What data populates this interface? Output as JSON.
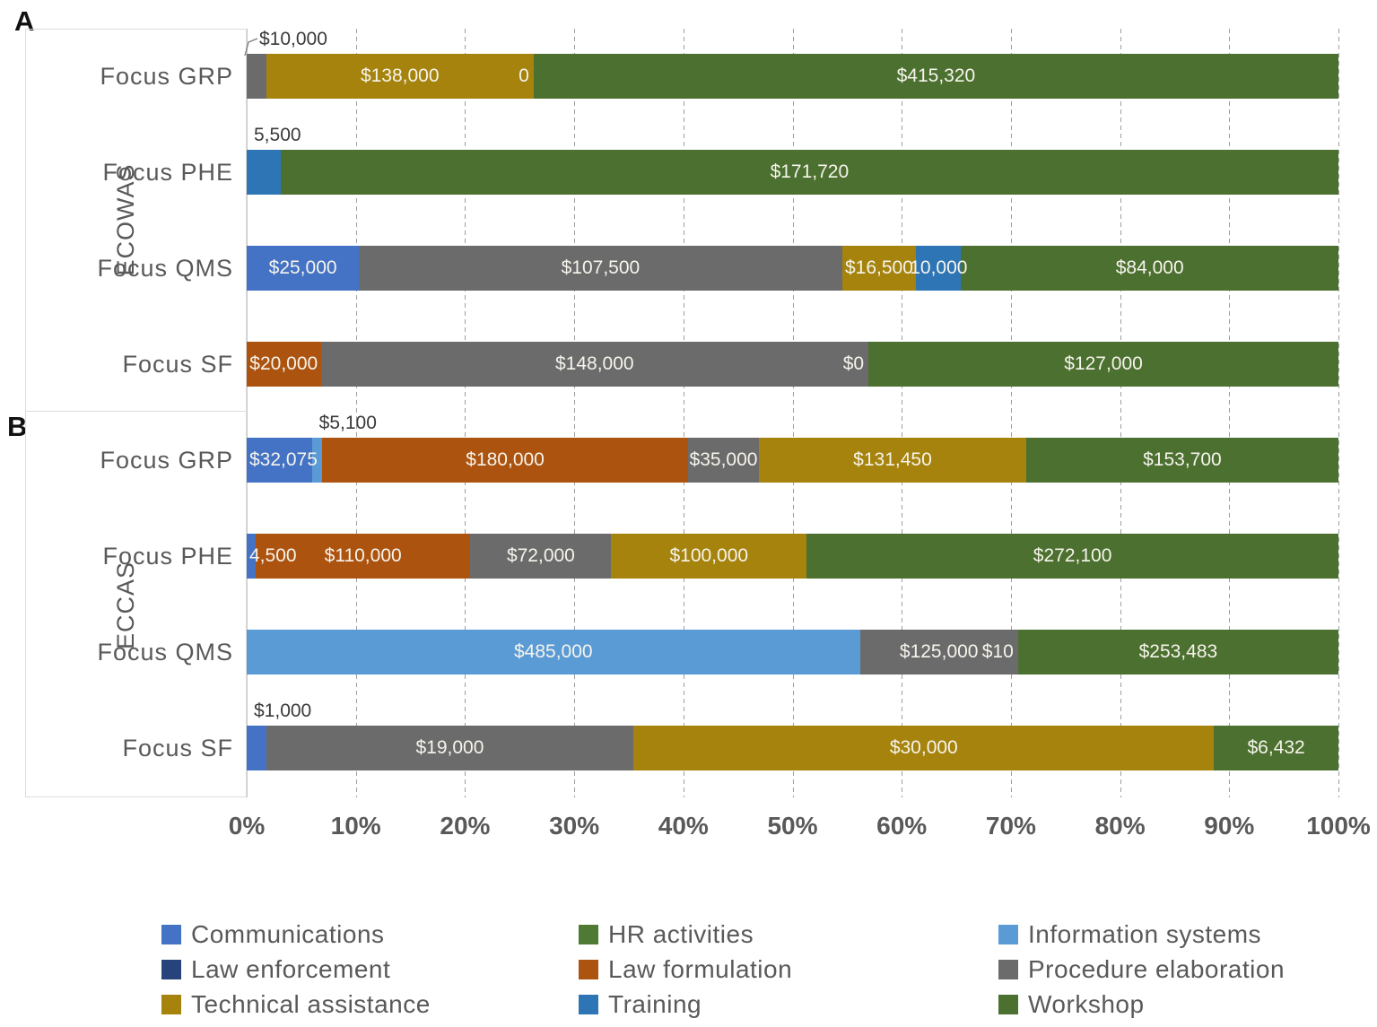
{
  "chart_data": {
    "type": "bar",
    "orientation": "horizontal",
    "stacking": "100%",
    "x_ticks": [
      "0%",
      "10%",
      "20%",
      "30%",
      "40%",
      "50%",
      "60%",
      "70%",
      "80%",
      "90%",
      "100%"
    ],
    "xlim": [
      0,
      100
    ],
    "grid": "dashed-vertical",
    "legend_position": "bottom",
    "series_colors": {
      "Communications": "#4472C4",
      "HR activities": "#4E7A33",
      "Information systems": "#5B9BD5",
      "Law enforcement": "#26437C",
      "Law formulation": "#AC5310",
      "Procedure elaboration": "#6B6B6B",
      "Technical assistance": "#A5830D",
      "Training": "#2E75B6",
      "Workshop": "#4C7030"
    },
    "panels": [
      {
        "id": "A",
        "group": "ECOWAS",
        "rows": [
          {
            "category": "Focus GRP",
            "segments": [
              {
                "series": "Procedure elaboration",
                "value": 10000,
                "pct": 1.78,
                "label": "$10,000",
                "label_pos": "above",
                "leader": true
              },
              {
                "series": "Technical assistance",
                "value": 138000,
                "pct": 24.5,
                "label": "$138,000",
                "label_pos": "in"
              },
              {
                "series": "Training",
                "value": 0,
                "pct": 0,
                "label": "0",
                "label_pos": "edge"
              },
              {
                "series": "Workshop",
                "value": 415320,
                "pct": 73.72,
                "label": "$415,320",
                "label_pos": "in"
              }
            ]
          },
          {
            "category": "Focus PHE",
            "segments": [
              {
                "series": "Training",
                "value": 5500,
                "pct": 3.1,
                "label": "5,500",
                "label_pos": "above"
              },
              {
                "series": "Workshop",
                "value": 171720,
                "pct": 96.9,
                "label": "$171,720",
                "label_pos": "in"
              }
            ]
          },
          {
            "category": "Focus QMS",
            "segments": [
              {
                "series": "Communications",
                "value": 25000,
                "pct": 10.29,
                "label": "$25,000",
                "label_pos": "in"
              },
              {
                "series": "Procedure elaboration",
                "value": 107500,
                "pct": 44.24,
                "label": "$107,500",
                "label_pos": "in"
              },
              {
                "series": "Technical assistance",
                "value": 16500,
                "pct": 6.79,
                "label": "$16,500",
                "label_pos": "in"
              },
              {
                "series": "Training",
                "value": 10000,
                "pct": 4.12,
                "label": "10,000",
                "label_pos": "in"
              },
              {
                "series": "Workshop",
                "value": 84000,
                "pct": 34.56,
                "label": "$84,000",
                "label_pos": "in"
              }
            ]
          },
          {
            "category": "Focus SF",
            "segments": [
              {
                "series": "Law formulation",
                "value": 20000,
                "pct": 6.78,
                "label": "$20,000",
                "label_pos": "in"
              },
              {
                "series": "Procedure elaboration",
                "value": 148000,
                "pct": 50.17,
                "label": "$148,000",
                "label_pos": "in"
              },
              {
                "series": "Technical assistance",
                "value": 0,
                "pct": 0,
                "label": "$0",
                "label_pos": "edge"
              },
              {
                "series": "Workshop",
                "value": 127000,
                "pct": 43.05,
                "label": "$127,000",
                "label_pos": "in"
              }
            ]
          }
        ]
      },
      {
        "id": "B",
        "group": "ECCAS",
        "rows": [
          {
            "category": "Focus GRP",
            "segments": [
              {
                "series": "Communications",
                "value": 32075,
                "pct": 5.97,
                "label": "$32,075",
                "label_pos": "in-left"
              },
              {
                "series": "Information systems",
                "value": 5100,
                "pct": 0.95,
                "label": "$5,100",
                "label_pos": "above"
              },
              {
                "series": "Law formulation",
                "value": 180000,
                "pct": 33.5,
                "label": "$180,000",
                "label_pos": "in"
              },
              {
                "series": "Procedure elaboration",
                "value": 35000,
                "pct": 6.51,
                "label": "$35,000",
                "label_pos": "in"
              },
              {
                "series": "Technical assistance",
                "value": 131450,
                "pct": 24.46,
                "label": "$131,450",
                "label_pos": "in"
              },
              {
                "series": "Workshop",
                "value": 153700,
                "pct": 28.61,
                "label": "$153,700",
                "label_pos": "in"
              }
            ]
          },
          {
            "category": "Focus PHE",
            "segments": [
              {
                "series": "Communications",
                "value": 4500,
                "pct": 0.81,
                "label": "4,500",
                "label_pos": "in-left"
              },
              {
                "series": "Law formulation",
                "value": 110000,
                "pct": 19.69,
                "label": "$110,000",
                "label_pos": "in"
              },
              {
                "series": "Procedure elaboration",
                "value": 72000,
                "pct": 12.89,
                "label": "$72,000",
                "label_pos": "in"
              },
              {
                "series": "Technical assistance",
                "value": 100000,
                "pct": 17.9,
                "label": "$100,000",
                "label_pos": "in"
              },
              {
                "series": "Workshop",
                "value": 272100,
                "pct": 48.71,
                "label": "$272,100",
                "label_pos": "in"
              }
            ]
          },
          {
            "category": "Focus QMS",
            "segments": [
              {
                "series": "Information systems",
                "value": 485000,
                "pct": 56.17,
                "label": "$485,000",
                "label_pos": "in"
              },
              {
                "series": "Procedure elaboration",
                "value": 125000,
                "pct": 14.48,
                "label": "$125,000",
                "label_pos": "in"
              },
              {
                "series": "Technical assistance",
                "value": 10,
                "pct": 0,
                "label": "$10",
                "label_pos": "edge"
              },
              {
                "series": "Workshop",
                "value": 253483,
                "pct": 29.35,
                "label": "$253,483",
                "label_pos": "in"
              }
            ]
          },
          {
            "category": "Focus SF",
            "segments": [
              {
                "series": "Communications",
                "value": 1000,
                "pct": 1.77,
                "label": "$1,000",
                "label_pos": "above"
              },
              {
                "series": "Procedure elaboration",
                "value": 19000,
                "pct": 33.67,
                "label": "$19,000",
                "label_pos": "in"
              },
              {
                "series": "Technical assistance",
                "value": 30000,
                "pct": 53.16,
                "label": "$30,000",
                "label_pos": "in"
              },
              {
                "series": "Workshop",
                "value": 6432,
                "pct": 11.4,
                "label": "$6,432",
                "label_pos": "in"
              }
            ]
          }
        ]
      }
    ],
    "legend": {
      "columns": [
        [
          "Communications",
          "Law enforcement",
          "Technical assistance"
        ],
        [
          "HR activities",
          "Law formulation",
          "Training"
        ],
        [
          "Information systems",
          "Procedure elaboration",
          "Workshop"
        ]
      ]
    }
  }
}
